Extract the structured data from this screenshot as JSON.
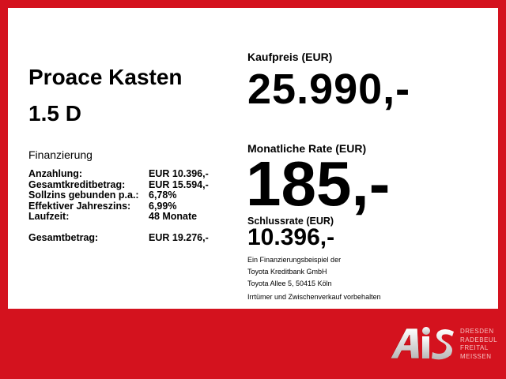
{
  "vehicle": {
    "model": "Proace Kasten",
    "engine": "1.5 D"
  },
  "financing": {
    "heading": "Finanzierung",
    "rows": [
      {
        "label": "Anzahlung:",
        "value": "EUR 10.396,-"
      },
      {
        "label": "Gesamtkreditbetrag:",
        "value": "EUR 15.594,-"
      },
      {
        "label": "Sollzins gebunden p.a.:",
        "value": "6,78%"
      },
      {
        "label": "Effektiver Jahreszins:",
        "value": "6,99%"
      },
      {
        "label": "Laufzeit:",
        "value": "48 Monate"
      }
    ],
    "total": {
      "label": "Gesamtbetrag:",
      "value": "EUR 19.276,-"
    }
  },
  "price": {
    "label": "Kaufpreis (EUR)",
    "value": "25.990,-"
  },
  "monthly": {
    "label": "Monatliche Rate (EUR)",
    "value": "185,-"
  },
  "final": {
    "label": "Schlussrate (EUR)",
    "value": "10.396,-"
  },
  "notes": [
    "Ein Finanzierungsbeispiel der",
    "Toyota Kreditbank GmbH",
    "Toyota Allee 5, 50415 Köln"
  ],
  "disclaimer": "Irrtümer und Zwischenverkauf vorbehalten",
  "logo": {
    "text": "AIS",
    "cities": [
      "DRESDEN",
      "RADEBEUL",
      "FREITAL",
      "MEISSEN"
    ]
  },
  "colors": {
    "background": "#d4121e",
    "panel": "#ffffff"
  }
}
